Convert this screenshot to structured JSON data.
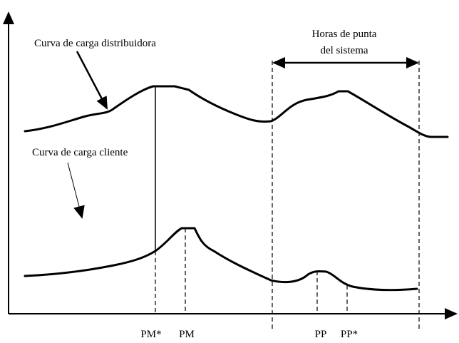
{
  "labels": {
    "distribuidora": "Curva de carga distribuidora",
    "cliente": "Curva de carga cliente",
    "horas_line1": "Horas de punta",
    "horas_line2": "del sistema",
    "pm_star": "PM*",
    "pm": "PM",
    "pp": "PP",
    "pp_star": "PP*"
  }
}
